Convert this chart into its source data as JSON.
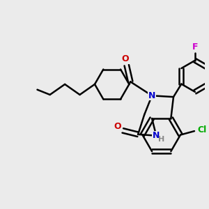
{
  "bg_color": "#ebebeb",
  "bond_color": "#000000",
  "N_color": "#0000CC",
  "O_color": "#CC0000",
  "F_color": "#CC00CC",
  "Cl_color": "#00AA00",
  "bond_width": 1.8,
  "figsize": [
    3.0,
    3.0
  ],
  "dpi": 100,
  "xlim": [
    -4.5,
    3.5
  ],
  "ylim": [
    -3.0,
    3.2
  ]
}
